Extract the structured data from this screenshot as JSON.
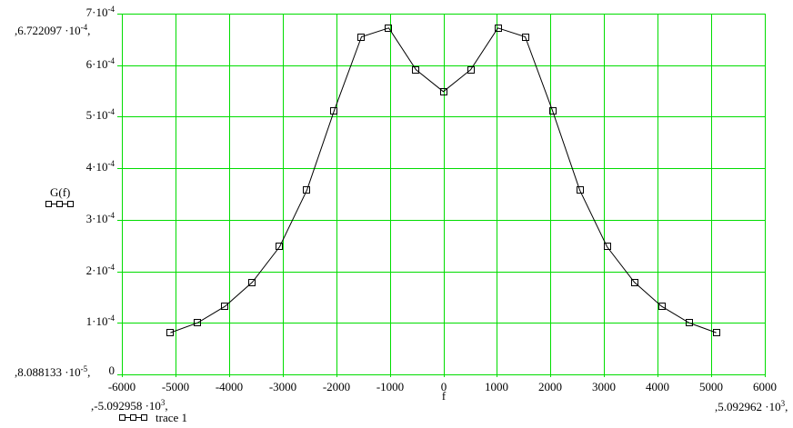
{
  "chart_data": {
    "type": "line",
    "title": "",
    "xlabel": "f",
    "ylabel": "G(f)",
    "legend_label": "trace 1",
    "grid": true,
    "legend_position": "bottom-left",
    "grid_color": "#00dd00",
    "trace_color": "#000000",
    "background_color": "#ffffff",
    "marker": "hollow-square",
    "xlim": [
      -6000,
      6000
    ],
    "ylim": [
      0,
      0.0007
    ],
    "x_ticks": [
      {
        "v": -6000,
        "text": "-6000"
      },
      {
        "v": -5000,
        "text": "-5000"
      },
      {
        "v": -4000,
        "text": "-4000"
      },
      {
        "v": -3000,
        "text": "-3000"
      },
      {
        "v": -2000,
        "text": "-2000"
      },
      {
        "v": -1000,
        "text": "-1000"
      },
      {
        "v": 0,
        "text": "0"
      },
      {
        "v": 1000,
        "text": "1000"
      },
      {
        "v": 2000,
        "text": "2000"
      },
      {
        "v": 3000,
        "text": "3000"
      },
      {
        "v": 4000,
        "text": "4000"
      },
      {
        "v": 5000,
        "text": "5000"
      },
      {
        "v": 6000,
        "text": "6000"
      }
    ],
    "y_ticks": [
      {
        "v": 0,
        "text": "0",
        "sup": ""
      },
      {
        "v": 0.0001,
        "text": "1·10",
        "sup": "-4"
      },
      {
        "v": 0.0002,
        "text": "2·10",
        "sup": "-4"
      },
      {
        "v": 0.0003,
        "text": "3·10",
        "sup": "-4"
      },
      {
        "v": 0.0004,
        "text": "4·10",
        "sup": "-4"
      },
      {
        "v": 0.0005,
        "text": "5·10",
        "sup": "-4"
      },
      {
        "v": 0.0006,
        "text": "6·10",
        "sup": "-4"
      },
      {
        "v": 0.0007,
        "text": "7·10",
        "sup": "-4"
      }
    ],
    "x": [
      -5092.958,
      -4583.662,
      -4074.366,
      -3565.071,
      -3055.775,
      -2546.479,
      -2037.183,
      -1527.887,
      -1018.592,
      -509.296,
      0,
      509.296,
      1018.592,
      1527.887,
      2037.183,
      2546.479,
      3055.775,
      3565.071,
      4074.366,
      4583.662,
      5092.962
    ],
    "y": [
      8.088133e-05,
      0.0001002,
      0.000132,
      0.0001789,
      0.0002478,
      0.0003576,
      0.0005118,
      0.000655,
      0.0006722097,
      0.000591,
      0.0005487,
      0.000591,
      0.0006722097,
      0.000655,
      0.0005118,
      0.0003576,
      0.0002478,
      0.0001789,
      0.000132,
      0.0001002,
      8.088133e-05
    ],
    "limits": {
      "y_max": {
        "text": ",6.722097 ·10",
        "sup": "-4",
        "post": ","
      },
      "y_min": {
        "text": ",8.088133 ·10",
        "sup": "-5",
        "post": ","
      },
      "x_min": {
        "text": ",-5.092958 ·10",
        "sup": "3",
        "post": ","
      },
      "x_max": {
        "text": ",5.092962 ·10",
        "sup": "3",
        "post": ","
      }
    }
  }
}
